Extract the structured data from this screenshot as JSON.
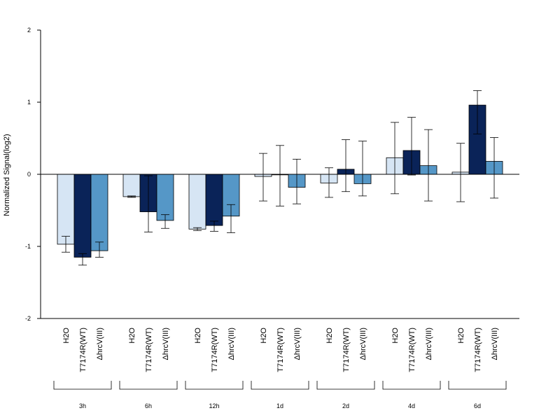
{
  "chart_data": {
    "type": "bar",
    "ylabel": "Normalized Signal(log2)",
    "ylim": [
      -2,
      2
    ],
    "yticks": [
      "2",
      "1",
      "0",
      "-1",
      "-2"
    ],
    "groups": [
      "3h",
      "6h",
      "12h",
      "1d",
      "2d",
      "4d",
      "6d"
    ],
    "series": [
      {
        "name": "H2O",
        "color": "#d6e5f4",
        "values": [
          -0.97,
          -0.31,
          -0.76,
          -0.03,
          -0.12,
          0.23,
          0.03
        ],
        "error_low": [
          -1.08,
          -0.32,
          -0.78,
          -0.37,
          -0.32,
          -0.27,
          -0.38
        ],
        "error_high": [
          -0.86,
          -0.3,
          -0.74,
          0.29,
          0.09,
          0.72,
          0.43
        ]
      },
      {
        "name": "T7174R(WT)",
        "color": "#0a2358",
        "values": [
          -1.15,
          -0.52,
          -0.71,
          0.0,
          0.07,
          0.33,
          0.96
        ],
        "error_low": [
          -1.26,
          -0.8,
          -0.79,
          -0.44,
          -0.24,
          -0.01,
          0.56
        ],
        "error_high": [
          -1.1,
          -0.02,
          -0.65,
          0.4,
          0.48,
          0.79,
          1.16
        ]
      },
      {
        "name": "ΔhrcV(III)",
        "color": "#5597c7",
        "values": [
          -1.06,
          -0.64,
          -0.58,
          -0.18,
          -0.13,
          0.12,
          0.18
        ],
        "error_low": [
          -1.15,
          -0.75,
          -0.81,
          -0.41,
          -0.3,
          -0.37,
          -0.33
        ],
        "error_high": [
          -0.94,
          -0.56,
          -0.42,
          0.21,
          0.46,
          0.62,
          0.51
        ]
      }
    ]
  }
}
